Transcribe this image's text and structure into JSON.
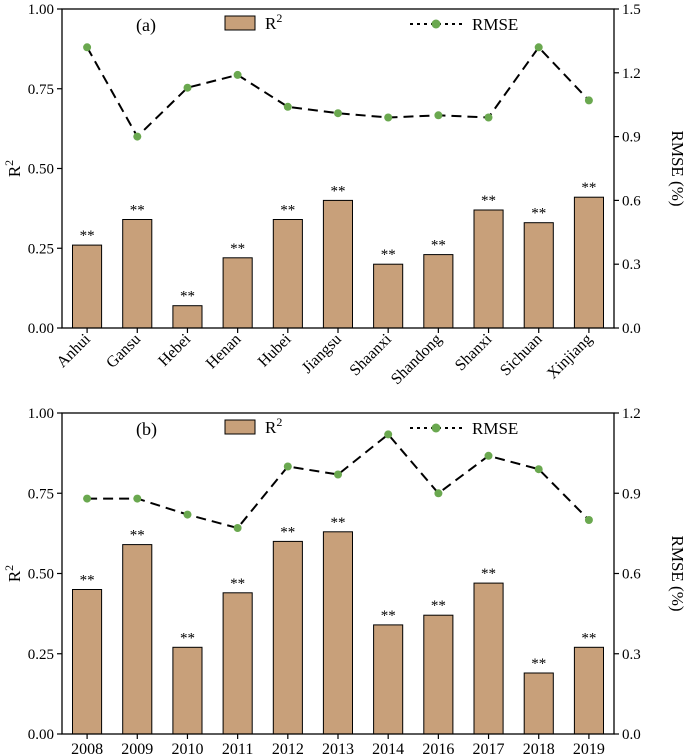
{
  "chart_data": [
    {
      "type": "bar",
      "panel_label": "(a)",
      "categories": [
        "Anhui",
        "Gansu",
        "Hebei",
        "Henan",
        "Hubei",
        "Jiangsu",
        "Shaanxi",
        "Shandong",
        "Shanxi",
        "Sichuan",
        "Xinjiang"
      ],
      "tick_rotation": "rotated",
      "series": [
        {
          "name": "R2",
          "legend_base": "R",
          "legend_sup": "2",
          "kind": "bar",
          "axis": "left",
          "values": [
            0.26,
            0.34,
            0.07,
            0.22,
            0.34,
            0.4,
            0.2,
            0.23,
            0.37,
            0.33,
            0.41
          ],
          "labels": [
            "**",
            "**",
            "**",
            "**",
            "**",
            "**",
            "**",
            "**",
            "**",
            "**",
            "**"
          ]
        },
        {
          "name": "RMSE",
          "kind": "line",
          "axis": "right",
          "values": [
            1.32,
            0.9,
            1.13,
            1.19,
            1.04,
            1.01,
            0.99,
            1.0,
            0.99,
            1.32,
            1.07
          ]
        }
      ],
      "ylabel_base": "R",
      "ylabel_sup": "2",
      "ylim": [
        0,
        1.0
      ],
      "yticks": [
        "0.00",
        "0.25",
        "0.50",
        "0.75",
        "1.00"
      ],
      "y2label": "RMSE (%)",
      "y2lim": [
        0,
        1.5
      ],
      "y2ticks": [
        "0.0",
        "0.3",
        "0.6",
        "0.9",
        "1.2",
        "1.5"
      ],
      "legend": "top"
    },
    {
      "type": "bar",
      "panel_label": "(b)",
      "categories": [
        "2008",
        "2009",
        "2010",
        "2011",
        "2012",
        "2013",
        "2014",
        "2016",
        "2017",
        "2018",
        "2019"
      ],
      "tick_rotation": "horizontal",
      "series": [
        {
          "name": "R2",
          "legend_base": "R",
          "legend_sup": "2",
          "kind": "bar",
          "axis": "left",
          "values": [
            0.45,
            0.59,
            0.27,
            0.44,
            0.6,
            0.63,
            0.34,
            0.37,
            0.47,
            0.19,
            0.27
          ],
          "labels": [
            "**",
            "**",
            "**",
            "**",
            "**",
            "**",
            "**",
            "**",
            "**",
            "**",
            "**"
          ]
        },
        {
          "name": "RMSE",
          "kind": "line",
          "axis": "right",
          "values": [
            0.88,
            0.88,
            0.82,
            0.77,
            1.0,
            0.97,
            1.12,
            0.9,
            1.04,
            0.99,
            0.8
          ]
        }
      ],
      "ylabel_base": "R",
      "ylabel_sup": "2",
      "ylim": [
        0,
        1.0
      ],
      "yticks": [
        "0.00",
        "0.25",
        "0.50",
        "0.75",
        "1.00"
      ],
      "y2label": "RMSE (%)",
      "y2lim": [
        0,
        1.2
      ],
      "y2ticks": [
        "0.0",
        "0.3",
        "0.6",
        "0.9",
        "1.2"
      ],
      "legend": "top"
    }
  ],
  "colors": {
    "bar_fill": "#c8a07a",
    "bar_edge": "#000000",
    "line": "#000000",
    "marker": "#6aa84f"
  }
}
